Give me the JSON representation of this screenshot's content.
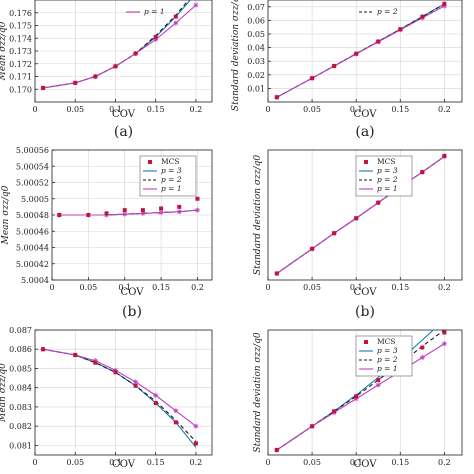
{
  "chart_data": [
    {
      "type": "line",
      "panel": "top-left",
      "ylabel": "Mean σzz/q0",
      "xlabel": "COV",
      "caption": "(a)",
      "xlim": [
        0,
        0.22
      ],
      "ylim": [
        0.169,
        0.177
      ],
      "xticks": [
        0,
        0.05,
        0.1,
        0.15,
        0.2
      ],
      "xtick_labels": [
        "0",
        "0.05",
        "0.1",
        "0.15",
        "0.2"
      ],
      "yticks": [
        0.17,
        0.171,
        0.172,
        0.173,
        0.174,
        0.175,
        0.176
      ],
      "ytick_labels": [
        "0.170",
        "0.171",
        "0.172",
        "0.173",
        "0.174",
        "0.175",
        "0.176"
      ],
      "legend": {
        "entries": [
          "p = 1"
        ]
      },
      "mcs": {
        "x": [
          0.01,
          0.05,
          0.075,
          0.1,
          0.125,
          0.15,
          0.175,
          0.2
        ],
        "y": [
          0.1701,
          0.1705,
          0.171,
          0.1718,
          0.1728,
          0.1741,
          0.1757,
          0.1775
        ]
      },
      "series": [
        {
          "p": 3,
          "x": [
            0.01,
            0.05,
            0.075,
            0.1,
            0.125,
            0.15,
            0.175,
            0.2
          ],
          "y": [
            0.1701,
            0.1705,
            0.171,
            0.1718,
            0.1728,
            0.1741,
            0.1757,
            0.1775
          ]
        },
        {
          "p": 2,
          "x": [
            0.01,
            0.05,
            0.075,
            0.1,
            0.125,
            0.15,
            0.175,
            0.2
          ],
          "y": [
            0.1701,
            0.1705,
            0.171,
            0.1718,
            0.1728,
            0.1742,
            0.1758,
            0.1777
          ]
        },
        {
          "p": 1,
          "x": [
            0.01,
            0.05,
            0.075,
            0.1,
            0.125,
            0.15,
            0.175,
            0.2
          ],
          "y": [
            0.1701,
            0.1705,
            0.171,
            0.1718,
            0.1728,
            0.1739,
            0.1752,
            0.1766
          ]
        }
      ]
    },
    {
      "type": "line",
      "panel": "top-right",
      "ylabel": "Standard deviation σzz/q0",
      "xlabel": "COV",
      "caption": "(a)",
      "xlim": [
        0,
        0.22
      ],
      "ylim": [
        0,
        0.075
      ],
      "xticks": [
        0,
        0.05,
        0.1,
        0.15,
        0.2
      ],
      "xtick_labels": [
        "0",
        "0.05",
        "0.1",
        "0.15",
        "0.2"
      ],
      "yticks": [
        0.01,
        0.02,
        0.03,
        0.04,
        0.05,
        0.06,
        0.07
      ],
      "ytick_labels": [
        "0.01",
        "0.02",
        "0.03",
        "0.04",
        "0.05",
        "0.06",
        "0.07"
      ],
      "legend": {
        "entries": [
          "p = 2"
        ]
      },
      "mcs": {
        "x": [
          0.01,
          0.05,
          0.075,
          0.1,
          0.125,
          0.15,
          0.175,
          0.2
        ],
        "y": [
          0.0035,
          0.0175,
          0.0265,
          0.0355,
          0.0445,
          0.0535,
          0.0628,
          0.0722
        ]
      },
      "series": [
        {
          "p": 3,
          "x": [
            0.01,
            0.05,
            0.075,
            0.1,
            0.125,
            0.15,
            0.175,
            0.2
          ],
          "y": [
            0.0035,
            0.0175,
            0.0265,
            0.0355,
            0.0445,
            0.0535,
            0.0628,
            0.0722
          ]
        },
        {
          "p": 2,
          "x": [
            0.01,
            0.05,
            0.075,
            0.1,
            0.125,
            0.15,
            0.175,
            0.2
          ],
          "y": [
            0.0035,
            0.0175,
            0.0265,
            0.0355,
            0.0445,
            0.0535,
            0.0626,
            0.072
          ]
        },
        {
          "p": 1,
          "x": [
            0.01,
            0.05,
            0.075,
            0.1,
            0.125,
            0.15,
            0.175,
            0.2
          ],
          "y": [
            0.0035,
            0.0175,
            0.0264,
            0.0353,
            0.0442,
            0.053,
            0.0618,
            0.0706
          ]
        }
      ]
    },
    {
      "type": "line",
      "panel": "middle-left",
      "ylabel": "Mean σzz/q0",
      "xlabel": "COV",
      "caption": "(b)",
      "xlim": [
        0,
        0.22
      ],
      "ylim": [
        5.0004,
        5.00056
      ],
      "xticks": [
        0,
        0.05,
        0.1,
        0.15,
        0.2
      ],
      "xtick_labels": [
        "0",
        "0.05",
        "0.1",
        "0.15",
        "0.2"
      ],
      "yticks": [
        5.0004,
        5.00042,
        5.00044,
        5.00046,
        5.00048,
        5.0005,
        5.00052,
        5.00054,
        5.00056
      ],
      "ytick_labels": [
        "5.0004",
        "5.00042",
        "5.00044",
        "5.00046",
        "5.00048",
        "5.0005",
        "5.00052",
        "5.00054",
        "5.00056"
      ],
      "legend": {
        "entries": [
          "MCS",
          "p = 3",
          "p = 2",
          "p = 1"
        ]
      },
      "mcs": {
        "x": [
          0.01,
          0.05,
          0.075,
          0.1,
          0.125,
          0.15,
          0.175,
          0.2
        ],
        "y": [
          5.00048,
          5.00048,
          5.000482,
          5.000486,
          5.000486,
          5.000488,
          5.00049,
          5.0005
        ]
      },
      "series": [
        {
          "p": 3,
          "x": [
            0.01,
            0.05,
            0.075,
            0.1,
            0.125,
            0.15,
            0.175,
            0.2
          ],
          "y": [
            5.00048,
            5.00048,
            5.00048,
            5.000481,
            5.000482,
            5.000483,
            5.000484,
            5.000486
          ]
        },
        {
          "p": 2,
          "x": [
            0.01,
            0.05,
            0.075,
            0.1,
            0.125,
            0.15,
            0.175,
            0.2
          ],
          "y": [
            5.00048,
            5.00048,
            5.00048,
            5.000481,
            5.000482,
            5.000483,
            5.000484,
            5.000486
          ]
        },
        {
          "p": 1,
          "x": [
            0.01,
            0.05,
            0.075,
            0.1,
            0.125,
            0.15,
            0.175,
            0.2
          ],
          "y": [
            5.00048,
            5.00048,
            5.00048,
            5.000481,
            5.000482,
            5.000483,
            5.000484,
            5.000486
          ]
        }
      ]
    },
    {
      "type": "line",
      "panel": "middle-right",
      "ylabel": "Standard deviation σzz/q0",
      "xlabel": "COV",
      "caption": "(b)",
      "xlim": [
        0,
        0.22
      ],
      "ylim": [
        0,
        1
      ],
      "xticks": [
        0,
        0.05,
        0.1,
        0.15,
        0.2
      ],
      "xtick_labels": [
        "0",
        "0.05",
        "0.1",
        "0.15",
        "0.2"
      ],
      "yticks": [],
      "ytick_labels": [],
      "legend": {
        "entries": [
          "MCS",
          "p = 3",
          "p = 2",
          "p = 1"
        ]
      },
      "mcs": {
        "x": [
          0.01,
          0.05,
          0.075,
          0.1,
          0.125,
          0.15,
          0.175,
          0.2
        ],
        "y": [
          0.05,
          0.24,
          0.36,
          0.475,
          0.595,
          0.715,
          0.83,
          0.955
        ]
      },
      "series": [
        {
          "p": 3,
          "x": [
            0.01,
            0.05,
            0.075,
            0.1,
            0.125,
            0.15,
            0.175,
            0.2
          ],
          "y": [
            0.05,
            0.24,
            0.36,
            0.475,
            0.595,
            0.715,
            0.83,
            0.95
          ]
        },
        {
          "p": 2,
          "x": [
            0.01,
            0.05,
            0.075,
            0.1,
            0.125,
            0.15,
            0.175,
            0.2
          ],
          "y": [
            0.05,
            0.24,
            0.36,
            0.475,
            0.595,
            0.715,
            0.83,
            0.95
          ]
        },
        {
          "p": 1,
          "x": [
            0.01,
            0.05,
            0.075,
            0.1,
            0.125,
            0.15,
            0.175,
            0.2
          ],
          "y": [
            0.05,
            0.24,
            0.36,
            0.475,
            0.595,
            0.715,
            0.83,
            0.95
          ]
        }
      ]
    },
    {
      "type": "line",
      "panel": "bottom-left",
      "ylabel": "Mean σzz/q0",
      "xlabel": "COV",
      "caption": "",
      "xlim": [
        0,
        0.22
      ],
      "ylim": [
        0.0805,
        0.087
      ],
      "xticks": [
        0,
        0.05,
        0.1,
        0.15,
        0.2
      ],
      "xtick_labels": [
        "0",
        "0.05",
        "0.1",
        "0.15",
        "0.2"
      ],
      "yticks": [
        0.081,
        0.082,
        0.083,
        0.084,
        0.085,
        0.086,
        0.087
      ],
      "ytick_labels": [
        "0.081",
        "0.082",
        "0.083",
        "0.084",
        "0.085",
        "0.086",
        "0.087"
      ],
      "legend": {
        "entries": []
      },
      "mcs": {
        "x": [
          0.01,
          0.05,
          0.075,
          0.1,
          0.125,
          0.15,
          0.175,
          0.2
        ],
        "y": [
          0.086,
          0.0857,
          0.0853,
          0.0848,
          0.0841,
          0.0832,
          0.0822,
          0.0811
        ]
      },
      "series": [
        {
          "p": 3,
          "x": [
            0.01,
            0.05,
            0.075,
            0.1,
            0.125,
            0.15,
            0.175,
            0.2
          ],
          "y": [
            0.086,
            0.0857,
            0.0853,
            0.0848,
            0.0841,
            0.0832,
            0.0822,
            0.0809
          ]
        },
        {
          "p": 2,
          "x": [
            0.01,
            0.05,
            0.075,
            0.1,
            0.125,
            0.15,
            0.175,
            0.2
          ],
          "y": [
            0.086,
            0.0857,
            0.0853,
            0.0848,
            0.0841,
            0.0833,
            0.0823,
            0.0812
          ]
        },
        {
          "p": 1,
          "x": [
            0.01,
            0.05,
            0.075,
            0.1,
            0.125,
            0.15,
            0.175,
            0.2
          ],
          "y": [
            0.086,
            0.0857,
            0.0854,
            0.0849,
            0.0843,
            0.0836,
            0.0828,
            0.082
          ]
        }
      ]
    },
    {
      "type": "line",
      "panel": "bottom-right",
      "ylabel": "Standard deviation σzz/q0",
      "xlabel": "COV",
      "caption": "",
      "xlim": [
        0,
        0.22
      ],
      "ylim": [
        0,
        1
      ],
      "xticks": [
        0,
        0.05,
        0.1,
        0.15,
        0.2
      ],
      "xtick_labels": [
        "0",
        "0.05",
        "0.1",
        "0.15",
        "0.2"
      ],
      "yticks": [],
      "ytick_labels": [],
      "legend": {
        "entries": [
          "MCS",
          "p = 3",
          "p = 2",
          "p = 1"
        ]
      },
      "mcs": {
        "x": [
          0.01,
          0.05,
          0.075,
          0.1,
          0.125,
          0.15,
          0.175,
          0.2
        ],
        "y": [
          0.04,
          0.23,
          0.35,
          0.47,
          0.6,
          0.73,
          0.86,
          0.98
        ]
      },
      "series": [
        {
          "p": 3,
          "x": [
            0.01,
            0.05,
            0.075,
            0.1,
            0.125,
            0.15,
            0.175,
            0.2
          ],
          "y": [
            0.04,
            0.23,
            0.35,
            0.48,
            0.62,
            0.76,
            0.92,
            1.08
          ]
        },
        {
          "p": 2,
          "x": [
            0.01,
            0.05,
            0.075,
            0.1,
            0.125,
            0.15,
            0.175,
            0.2
          ],
          "y": [
            0.04,
            0.23,
            0.35,
            0.47,
            0.6,
            0.73,
            0.87,
            1.0
          ]
        },
        {
          "p": 1,
          "x": [
            0.01,
            0.05,
            0.075,
            0.1,
            0.125,
            0.15,
            0.175,
            0.2
          ],
          "y": [
            0.04,
            0.23,
            0.34,
            0.45,
            0.56,
            0.67,
            0.78,
            0.89
          ]
        }
      ]
    }
  ],
  "style": {
    "mcs_color": "#c0143c",
    "p3_color": "#1f78b4",
    "p2_color": "#1a1a1a",
    "p1_color": "#c040c0",
    "axis_color": "#222222",
    "grid_color": "#d4d4d4"
  }
}
